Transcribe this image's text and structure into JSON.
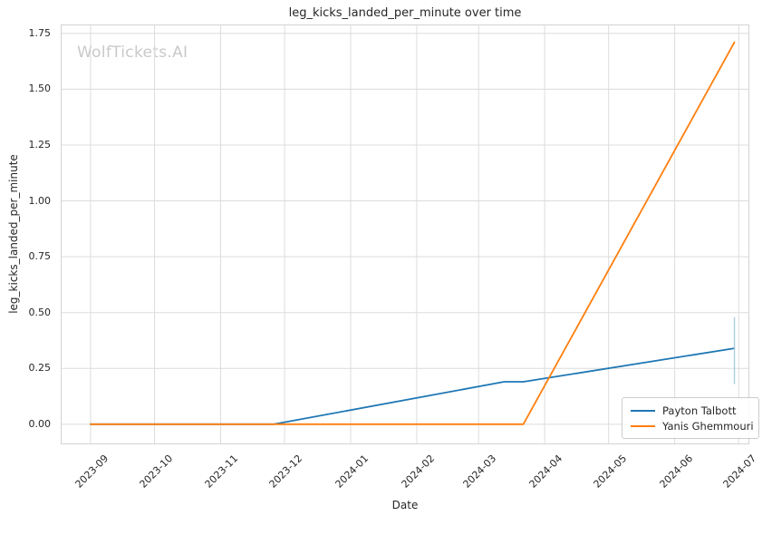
{
  "chart": {
    "title": "leg_kicks_landed_per_minute over time",
    "xlabel": "Date",
    "ylabel": "leg_kicks_landed_per_minute",
    "watermark": "WolfTickets.AI"
  },
  "chart_data": {
    "type": "line",
    "title": "leg_kicks_landed_per_minute over time",
    "xlabel": "Date",
    "ylabel": "leg_kicks_landed_per_minute",
    "x_ticks": [
      "2023-09",
      "2023-10",
      "2023-11",
      "2023-12",
      "2024-01",
      "2024-02",
      "2024-03",
      "2024-04",
      "2024-05",
      "2024-06",
      "2024-07"
    ],
    "y_ticks": [
      "0.00",
      "0.25",
      "0.50",
      "0.75",
      "1.00",
      "1.25",
      "1.50",
      "1.75"
    ],
    "xlim": [
      "2023-08-18",
      "2024-07-06"
    ],
    "ylim": [
      -0.09,
      1.79
    ],
    "grid": true,
    "legend_position": "lower right",
    "series": [
      {
        "name": "Payton Talbott",
        "color": "#1f77b4",
        "points": [
          [
            "2023-09-01",
            0.0
          ],
          [
            "2023-11-26",
            0.0
          ],
          [
            "2024-03-13",
            0.19
          ],
          [
            "2024-03-22",
            0.19
          ],
          [
            "2024-06-29",
            0.34
          ]
        ],
        "error_bar": {
          "x": "2024-06-29",
          "y_low": 0.18,
          "y_high": 0.48,
          "color": "#a9cde5"
        }
      },
      {
        "name": "Yanis Ghemmouri",
        "color": "#ff7f0e",
        "points": [
          [
            "2023-09-01",
            0.0
          ],
          [
            "2024-03-22",
            0.0
          ],
          [
            "2024-06-29",
            1.71
          ]
        ]
      }
    ],
    "colors": {
      "grid": "#dcdcdc",
      "spine": "#d3d3d3",
      "text": "#262626",
      "watermark": "#c9c9c9",
      "background": "#ffffff"
    }
  }
}
